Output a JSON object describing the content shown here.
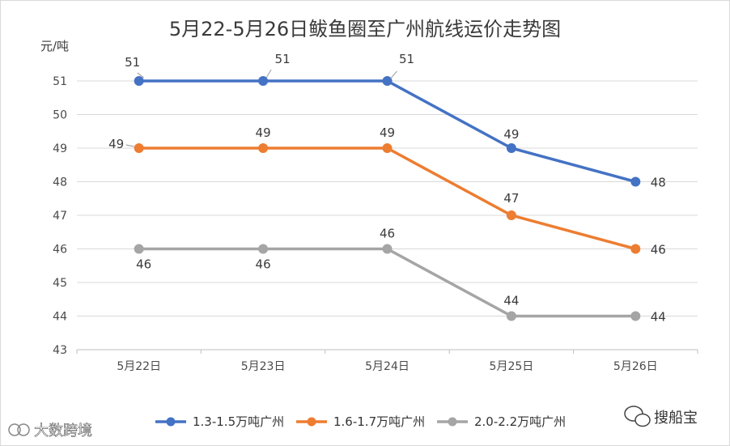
{
  "chart_data": {
    "type": "line",
    "title": "5月22-5月26日鲅鱼圈至广州航线运价走势图",
    "ylabel": "元/吨",
    "xlabel": "",
    "categories": [
      "5月22日",
      "5月23日",
      "5月24日",
      "5月25日",
      "5月26日"
    ],
    "ylim": [
      43,
      51
    ],
    "yticks": [
      "43",
      "44",
      "45",
      "46",
      "47",
      "48",
      "49",
      "50",
      "51"
    ],
    "series": [
      {
        "name": "1.3-1.5万吨广州",
        "values": [
          51,
          51,
          51,
          49,
          48
        ],
        "labels": [
          "51",
          "51",
          "51",
          "49",
          "48"
        ],
        "color": "#4472C4"
      },
      {
        "name": "1.6-1.7万吨广州",
        "values": [
          49,
          49,
          49,
          47,
          46
        ],
        "labels": [
          "49",
          "49",
          "49",
          "47",
          "46"
        ],
        "color": "#ED7D31"
      },
      {
        "name": "2.0-2.2万吨广州",
        "values": [
          46,
          46,
          46,
          44,
          44
        ],
        "labels": [
          "46",
          "46",
          "46",
          "44",
          "44"
        ],
        "color": "#A5A5A5"
      }
    ],
    "grid": true,
    "legend": "bottom"
  },
  "watermarks": {
    "right": "搜船宝",
    "left": "大数跨境",
    "right_icon": "wechat-icon"
  }
}
